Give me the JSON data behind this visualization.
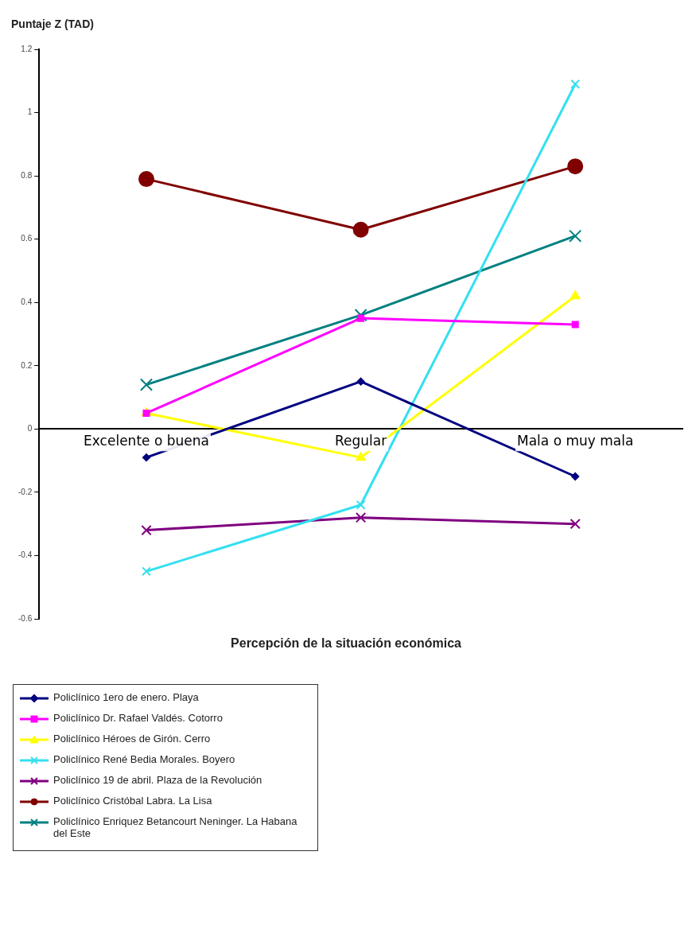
{
  "chart_data": {
    "type": "line",
    "ylabel": "Puntaje Z (TAD)",
    "xlabel": "Percepción de la situación económica",
    "categories": [
      "Excelente o buena",
      "Regular",
      "Mala o muy mala"
    ],
    "ylim": [
      -0.6,
      1.2
    ],
    "yticks": [
      -0.6,
      -0.4,
      -0.2,
      0,
      0.2,
      0.4,
      0.6,
      0.8,
      1,
      1.2
    ],
    "grid": false,
    "legend": "bottom",
    "series": [
      {
        "name": "Policlínico 1ero de enero. Playa",
        "color": "#000080",
        "marker": "diamond",
        "values": [
          -0.09,
          0.15,
          -0.15
        ]
      },
      {
        "name": "Policlínico Dr. Rafael Valdés. Cotorro",
        "color": "#ff00ff",
        "marker": "square",
        "values": [
          0.05,
          0.35,
          0.33
        ]
      },
      {
        "name": "Policlínico Héroes de Girón. Cerro",
        "color": "#ffff00",
        "marker": "triangle",
        "values": [
          0.05,
          -0.09,
          0.42
        ]
      },
      {
        "name": "Policlínico René Bedia Morales. Boyero",
        "color": "#33e0f0",
        "marker": "cross",
        "values": [
          -0.45,
          -0.24,
          1.09
        ]
      },
      {
        "name": "Policlínico 19 de abril. Plaza de la Revolución",
        "color": "#800080",
        "marker": "cross",
        "values": [
          -0.32,
          -0.28,
          -0.3
        ]
      },
      {
        "name": "Policlínico Cristóbal Labra. La Lisa",
        "color": "#800000",
        "marker": "circle",
        "values": [
          0.79,
          0.63,
          0.83
        ]
      },
      {
        "name": "Policlínico Enriquez Betancourt Neninger. La Habana del Este",
        "color": "#008080",
        "marker": "cross",
        "values": [
          0.14,
          0.36,
          0.61
        ]
      }
    ]
  }
}
